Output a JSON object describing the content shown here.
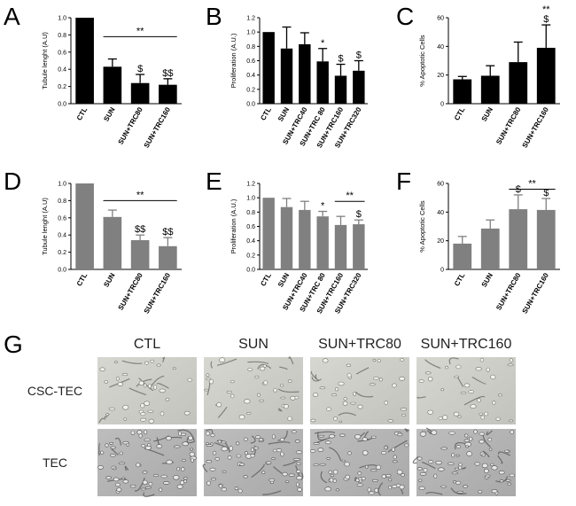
{
  "chart_data": [
    {
      "id": "A",
      "type": "bar",
      "ylabel": "Tubule lenght (A.U)",
      "ylim": [
        0,
        1.0
      ],
      "yticks": [
        0.0,
        0.2,
        0.4,
        0.6,
        0.8,
        1.0
      ],
      "ytick_labels": [
        "0.0",
        "0.2",
        "0.4",
        "0.6",
        "0.8",
        "1.0"
      ],
      "categories": [
        "CTL",
        "SUN",
        "SUN+TRC80",
        "SUN+TRC160"
      ],
      "values": [
        1.0,
        0.43,
        0.24,
        0.22
      ],
      "errors": [
        0,
        0.09,
        0.1,
        0.07
      ],
      "bar_color": "#000000",
      "annotations": [
        "",
        "",
        "$",
        "$$"
      ],
      "brackets": [
        {
          "from": 1,
          "to": 3,
          "y": 0.78,
          "label": "**"
        }
      ]
    },
    {
      "id": "B",
      "type": "bar",
      "ylabel": "Proliferation (A.U.)",
      "ylim": [
        0,
        1.2
      ],
      "yticks": [
        0.0,
        0.2,
        0.4,
        0.6,
        0.8,
        1.0,
        1.2
      ],
      "ytick_labels": [
        "0.0",
        "0.2",
        "0.4",
        "0.6",
        "0.8",
        "1.0",
        "1.2"
      ],
      "categories": [
        "CTL",
        "SUN",
        "SUN+TRC40",
        "SUN+TRC 80",
        "SUN+TRC160",
        "SUN+TRC320"
      ],
      "values": [
        1.0,
        0.77,
        0.83,
        0.59,
        0.39,
        0.46
      ],
      "errors": [
        0,
        0.3,
        0.16,
        0.18,
        0.16,
        0.14
      ],
      "bar_color": "#000000",
      "annotations": [
        "",
        "",
        "",
        "*",
        "$",
        "$"
      ],
      "brackets": []
    },
    {
      "id": "C",
      "type": "bar",
      "ylabel": "% Apoptotic Cells",
      "ylim": [
        0,
        60
      ],
      "yticks": [
        0,
        20,
        40,
        60
      ],
      "ytick_labels": [
        "0",
        "20",
        "40",
        "60"
      ],
      "categories": [
        "CTL",
        "SUN",
        "SUN+TRC80",
        "SUN+TRC160"
      ],
      "values": [
        17,
        19.5,
        29,
        39
      ],
      "errors": [
        2,
        7,
        14,
        16
      ],
      "bar_color": "#000000",
      "annotations": [
        "",
        "",
        "",
        "**\n$"
      ],
      "brackets": []
    },
    {
      "id": "D",
      "type": "bar",
      "ylabel": "Tubule lenght (A.U)",
      "ylim": [
        0,
        1.0
      ],
      "yticks": [
        0.0,
        0.2,
        0.4,
        0.6,
        0.8,
        1.0
      ],
      "ytick_labels": [
        "0.0",
        "0.2",
        "0.4",
        "0.6",
        "0.8",
        "1.0"
      ],
      "categories": [
        "CTL",
        "SUN",
        "SUN+TRC80",
        "SUN+TRC160"
      ],
      "values": [
        1.0,
        0.61,
        0.34,
        0.27
      ],
      "errors": [
        0,
        0.08,
        0.06,
        0.1
      ],
      "bar_color": "#808080",
      "annotations": [
        "",
        "",
        "$$",
        "$$"
      ],
      "brackets": [
        {
          "from": 1,
          "to": 3,
          "y": 0.8,
          "label": "**"
        }
      ]
    },
    {
      "id": "E",
      "type": "bar",
      "ylabel": "Proliferation (A.U.)",
      "ylim": [
        0,
        1.2
      ],
      "yticks": [
        0.0,
        0.2,
        0.4,
        0.6,
        0.8,
        1.0,
        1.2
      ],
      "ytick_labels": [
        "0.0",
        "0.2",
        "0.4",
        "0.6",
        "0.8",
        "1.0",
        "1.2"
      ],
      "categories": [
        "CTL",
        "SUN",
        "SUN+TRC40",
        "SUN+TRC 80",
        "SUN+TRC160",
        "SUN+TRC320"
      ],
      "values": [
        1.0,
        0.87,
        0.83,
        0.74,
        0.62,
        0.63
      ],
      "errors": [
        0,
        0.12,
        0.12,
        0.07,
        0.12,
        0.06
      ],
      "bar_color": "#808080",
      "annotations": [
        "",
        "",
        "",
        "*",
        "",
        "$"
      ],
      "brackets": [
        {
          "from": 4,
          "to": 5,
          "y": 0.95,
          "label": "**"
        }
      ]
    },
    {
      "id": "F",
      "type": "bar",
      "ylabel": "% Apoptotic Cells",
      "ylim": [
        0,
        60
      ],
      "yticks": [
        0,
        20,
        40,
        60
      ],
      "ytick_labels": [
        "0",
        "20",
        "40",
        "60"
      ],
      "categories": [
        "CTL",
        "SUN",
        "SUN+TRC80",
        "SUN+TRC160"
      ],
      "values": [
        18,
        28.5,
        42,
        41.5
      ],
      "errors": [
        5,
        6,
        10,
        8
      ],
      "bar_color": "#808080",
      "annotations": [
        "",
        "",
        "$",
        "$"
      ],
      "brackets": [
        {
          "from": 2,
          "to": 3,
          "y": 56,
          "label": "**"
        }
      ]
    }
  ],
  "micrographs": {
    "panel_label": "G",
    "columns": [
      "CTL",
      "SUN",
      "SUN+TRC80",
      "SUN+TRC160"
    ],
    "rows": [
      "CSC-TEC",
      "TEC"
    ]
  }
}
